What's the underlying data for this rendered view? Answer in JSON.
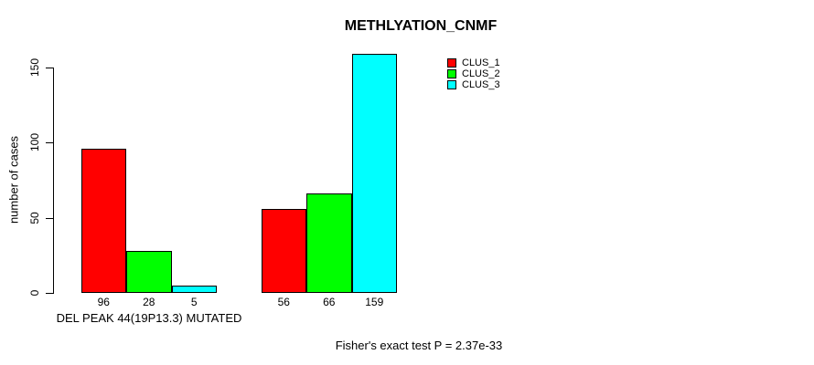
{
  "chart_data": {
    "type": "bar",
    "title": "METHLYATION_CNMF",
    "ylabel": "number of cases",
    "xlabel": "DEL PEAK 44(19P13.3) MUTATED",
    "annotation": "Fisher's exact test P = 2.37e-33",
    "yticks": [
      "0",
      "50",
      "100",
      "150"
    ],
    "ytick_values": [
      0,
      50,
      100,
      150
    ],
    "axis_range": [
      0,
      150
    ],
    "grid": false,
    "legend_position": "top-right-inside",
    "series": [
      {
        "name": "CLUS_1",
        "color": "#ff0000"
      },
      {
        "name": "CLUS_2",
        "color": "#00ff00"
      },
      {
        "name": "CLUS_3",
        "color": "#00ffff"
      }
    ],
    "groups": [
      {
        "label": "DEL PEAK 44(19P13.3) MUTATED",
        "values": [
          96,
          28,
          5
        ],
        "bar_labels": [
          "96",
          "28",
          "5"
        ]
      },
      {
        "label": "",
        "values": [
          56,
          66,
          159
        ],
        "bar_labels": [
          "56",
          "66",
          "159"
        ]
      }
    ],
    "colors": {
      "background": "#ffffff",
      "axis": "#000000",
      "text": "#000000"
    }
  }
}
